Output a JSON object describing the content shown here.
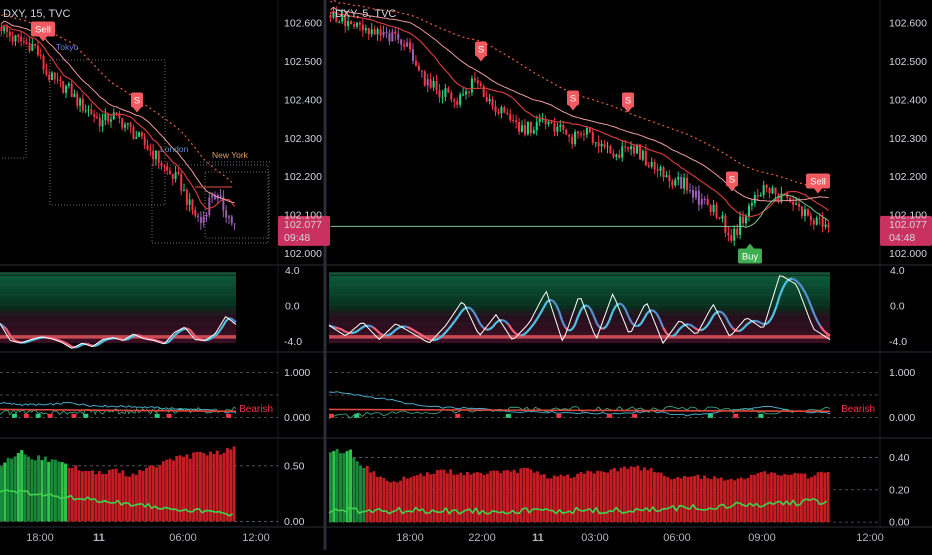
{
  "colors": {
    "bg": "#000000",
    "up": "#26d07c",
    "down": "#f23645",
    "purple": "#9c5fb5",
    "sell": "#f05a60",
    "buy": "#3fae52",
    "price_badge": "#c93160",
    "text": "#d1d4dc",
    "divider": "#2a2e39"
  },
  "left_chart": {
    "symbol_label": "DXY, 15, TVC",
    "price_ticks": [
      "102.600",
      "102.500",
      "102.400",
      "102.300",
      "102.200",
      "102.100",
      "102.000"
    ],
    "price_badge": {
      "price": "102.077",
      "countdown": "09:48"
    },
    "signals": [
      {
        "label": "Sell"
      },
      {
        "label": "S"
      }
    ],
    "sessions": [
      "Tokyo",
      "London",
      "New York"
    ],
    "osc_ticks": [
      "4.0",
      "0.0",
      "-4.0"
    ],
    "trend_ticks": [
      "1.000",
      "0.000"
    ],
    "trend_label": "Bearish",
    "volume_ticks": [
      "0.50",
      "0.00"
    ],
    "time_ticks": [
      "18:00",
      "11",
      "06:00",
      "12:00"
    ]
  },
  "right_chart": {
    "symbol_label": "DXY, 5, TVC",
    "price_ticks": [
      "102.600",
      "102.500",
      "102.400",
      "102.300",
      "102.200",
      "102.100",
      "102.000"
    ],
    "price_badge": {
      "price": "102.077",
      "countdown": "04:48"
    },
    "signals": [
      {
        "label": "S"
      },
      {
        "label": "S"
      },
      {
        "label": "S"
      },
      {
        "label": "S"
      },
      {
        "label": "Sell"
      },
      {
        "label": "Buy"
      }
    ],
    "osc_ticks": [
      "4.0",
      "0.0",
      "-4.0"
    ],
    "trend_ticks": [
      "1.000",
      "0.000"
    ],
    "trend_label": "Bearish",
    "volume_ticks": [
      "0.40",
      "0.20",
      "0.00"
    ],
    "time_ticks": [
      "18:00",
      "22:00",
      "11",
      "03:00",
      "06:00",
      "09:00",
      "12:00"
    ]
  },
  "chart_data": [
    {
      "type": "candlestick",
      "symbol": "DXY",
      "timeframe": "15",
      "source": "TVC",
      "ylim": [
        101.97,
        102.66
      ],
      "x_ticks": [
        "18:00",
        "11",
        "06:00",
        "12:00"
      ],
      "close_path": [
        102.59,
        102.56,
        102.55,
        102.54,
        102.47,
        102.44,
        102.43,
        102.39,
        102.37,
        102.34,
        102.36,
        102.34,
        102.31,
        102.28,
        102.25,
        102.21,
        102.19,
        102.12,
        102.08,
        102.16,
        102.12,
        102.07
      ],
      "last_price": 102.077,
      "countdown": "09:48",
      "oscillator": {
        "ylim": [
          -5.2,
          4.6
        ],
        "ticks": [
          4.0,
          0.0,
          -4.0
        ],
        "fast": [
          -2.0,
          -3.9,
          -4.2,
          -3.8,
          -3.5,
          -3.7,
          -4.1,
          -4.8,
          -4.2,
          -4.6,
          -3.8,
          -3.6,
          -3.9,
          -3.2,
          -3.7,
          -3.9,
          -4.3,
          -3.0,
          -2.4,
          -3.8,
          -3.9,
          -3.1,
          -1.2,
          -2.1
        ]
      },
      "trend_strength": {
        "ylim": [
          -0.45,
          1.45
        ],
        "ticks": [
          1.0,
          0.0
        ],
        "state": "Bearish",
        "line": [
          0.33,
          0.3,
          0.29,
          0.29,
          0.28,
          0.3,
          0.33,
          0.3,
          0.27,
          0.26,
          0.25,
          0.25,
          0.24,
          0.23,
          0.22,
          0.2,
          0.19,
          0.18,
          0.17,
          0.16,
          0.12,
          0.11
        ]
      },
      "volume_ratio": {
        "ylim": [
          -0.05,
          0.75
        ],
        "ticks": [
          0.5,
          0.0
        ],
        "bars": [
          0.54,
          0.62,
          0.65,
          0.6,
          0.58,
          0.55,
          0.52,
          0.49,
          0.47,
          0.46,
          0.48,
          0.44,
          0.47,
          0.52,
          0.55,
          0.6,
          0.62,
          0.63,
          0.64,
          0.66,
          0.68
        ]
      }
    },
    {
      "type": "candlestick",
      "symbol": "DXY",
      "timeframe": "5",
      "source": "TVC",
      "ylim": [
        101.97,
        102.66
      ],
      "x_ticks": [
        "18:00",
        "22:00",
        "11",
        "03:00",
        "06:00",
        "09:00",
        "12:00"
      ],
      "close_path": [
        102.62,
        102.6,
        102.58,
        102.57,
        102.56,
        102.53,
        102.44,
        102.42,
        102.4,
        102.45,
        102.39,
        102.35,
        102.32,
        102.34,
        102.33,
        102.3,
        102.31,
        102.28,
        102.26,
        102.27,
        102.23,
        102.2,
        102.18,
        102.14,
        102.11,
        102.04,
        102.12,
        102.17,
        102.15,
        102.12,
        102.09,
        102.07
      ],
      "last_price": 102.077,
      "countdown": "04:48",
      "oscillator": {
        "ylim": [
          -5.2,
          4.6
        ],
        "ticks": [
          4.0,
          0.0,
          -4.0
        ],
        "fast": [
          -2.2,
          -3.4,
          -1.8,
          -3.8,
          -2.0,
          -3.1,
          -4.2,
          -2.2,
          0.6,
          -3.4,
          -1.0,
          -3.9,
          -1.9,
          1.7,
          -4.1,
          1.3,
          -3.8,
          1.4,
          -3.3,
          0.5,
          -4.2,
          -1.6,
          -3.3,
          0.2,
          -3.5,
          -1.3,
          -2.6,
          3.5,
          2.4,
          -2.6,
          -3.8
        ]
      },
      "trend_strength": {
        "ylim": [
          -0.45,
          1.45
        ],
        "ticks": [
          1.0,
          0.0
        ],
        "state": "Bearish",
        "line": [
          0.58,
          0.52,
          0.46,
          0.4,
          0.3,
          0.24,
          0.22,
          0.2,
          0.19,
          0.13,
          0.14,
          0.12,
          0.11,
          0.1,
          0.09,
          0.11,
          0.14,
          0.09,
          0.05,
          0.1,
          0.16,
          0.2,
          0.24,
          0.15,
          0.12,
          0.1
        ]
      },
      "volume_ratio": {
        "ylim": [
          -0.03,
          0.52
        ],
        "ticks": [
          0.4,
          0.2,
          0.0
        ],
        "bars": [
          0.47,
          0.45,
          0.33,
          0.25,
          0.3,
          0.32,
          0.33,
          0.31,
          0.32,
          0.33,
          0.34,
          0.29,
          0.3,
          0.32,
          0.34,
          0.36,
          0.35,
          0.28,
          0.3,
          0.29,
          0.27,
          0.3,
          0.33,
          0.31,
          0.3,
          0.32
        ]
      }
    }
  ]
}
